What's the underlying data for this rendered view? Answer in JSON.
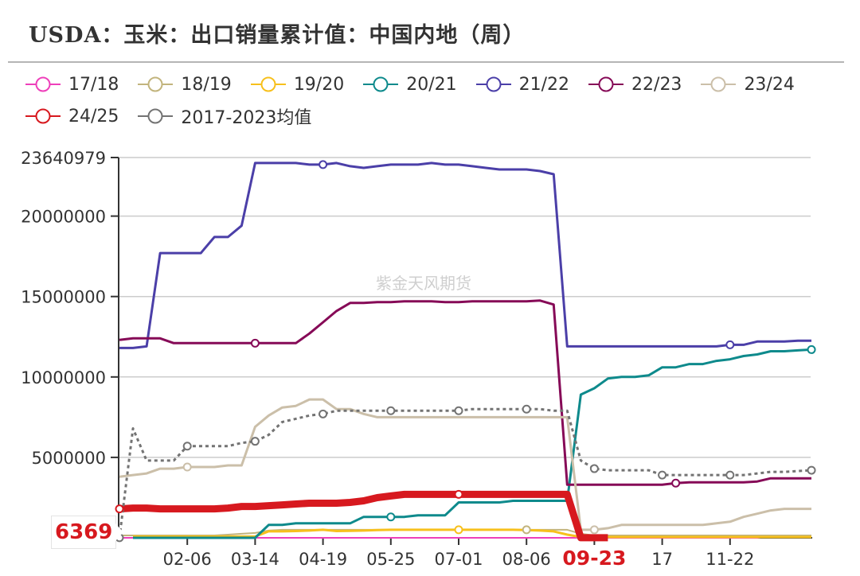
{
  "title": "USDA：玉米：出口销量累计值：中国内地（周）",
  "watermark": "紫金天风期货",
  "legend": [
    {
      "label": "17/18",
      "color": "#ee3fba"
    },
    {
      "label": "18/19",
      "color": "#c2b47d"
    },
    {
      "label": "19/20",
      "color": "#f7c01c"
    },
    {
      "label": "20/21",
      "color": "#0e8a8c"
    },
    {
      "label": "21/22",
      "color": "#4b3fa8"
    },
    {
      "label": "22/23",
      "color": "#860a57"
    },
    {
      "label": "23/24",
      "color": "#cbbfa9"
    },
    {
      "label": "24/25",
      "color": "#d7191f"
    },
    {
      "label": "2017-2023均值",
      "color": "#737373"
    }
  ],
  "callout": {
    "value": "6369",
    "color": "#d7191f"
  },
  "chart_data": {
    "type": "line",
    "title": "USDA：玉米：出口销量累计值：中国内地（周）",
    "xlabel": "",
    "ylabel": "",
    "ylim": [
      0,
      23640979
    ],
    "yticks": [
      0,
      5000000,
      10000000,
      15000000,
      20000000,
      23640979
    ],
    "ytick_labels": [
      "",
      "5000000",
      "10000000",
      "15000000",
      "20000000",
      "23640979"
    ],
    "xtick_labels": [
      "02-06",
      "03-14",
      "04-19",
      "05-25",
      "07-01",
      "08-06",
      "09-23",
      "17",
      "11-22"
    ],
    "xtick_week_index": [
      5,
      10,
      15,
      20,
      25,
      30,
      35,
      40,
      45
    ],
    "highlighted_xtick": "09-23",
    "grid": true,
    "legend_position": "top",
    "weeks": 52,
    "series": [
      {
        "name": "17/18",
        "color": "#ee3fba",
        "width": 2,
        "values": [
          0,
          0,
          0,
          0,
          0,
          0,
          0,
          0,
          0,
          0,
          0,
          0,
          0,
          0,
          0,
          0,
          0,
          0,
          0,
          0,
          0,
          0,
          0,
          0,
          0,
          0,
          0,
          0,
          0,
          0,
          0,
          0,
          0,
          0,
          0,
          0,
          0,
          0,
          0,
          0,
          0,
          0,
          0,
          0,
          0,
          0,
          0,
          0,
          100000,
          100000,
          100000,
          100000
        ]
      },
      {
        "name": "18/19",
        "color": "#c2b47d",
        "width": 2,
        "values": [
          150000,
          150000,
          150000,
          150000,
          150000,
          150000,
          150000,
          150000,
          200000,
          250000,
          300000,
          450000,
          500000,
          500000,
          500000,
          500000,
          500000,
          500000,
          500000,
          500000,
          500000,
          500000,
          500000,
          500000,
          500000,
          500000,
          500000,
          500000,
          500000,
          500000,
          500000,
          500000,
          500000,
          500000,
          250000,
          150000,
          150000,
          150000,
          150000,
          150000,
          150000,
          150000,
          150000,
          150000,
          150000,
          150000,
          150000,
          150000,
          150000,
          150000,
          150000,
          150000
        ]
      },
      {
        "name": "19/20",
        "color": "#f7c01c",
        "width": 3,
        "values": [
          null,
          80000,
          80000,
          80000,
          80000,
          80000,
          80000,
          80000,
          80000,
          80000,
          80000,
          400000,
          400000,
          420000,
          450000,
          500000,
          420000,
          430000,
          450000,
          480000,
          500000,
          500000,
          500000,
          500000,
          500000,
          500000,
          500000,
          500000,
          500000,
          500000,
          480000,
          450000,
          400000,
          200000,
          50000,
          50000,
          50000,
          50000,
          50000,
          50000,
          50000,
          50000,
          50000,
          50000,
          50000,
          50000,
          50000,
          50000,
          50000,
          50000,
          50000,
          50000
        ]
      },
      {
        "name": "20/21",
        "color": "#0e8a8c",
        "width": 3,
        "values": [
          null,
          0,
          0,
          0,
          0,
          0,
          0,
          0,
          0,
          0,
          0,
          800000,
          800000,
          900000,
          900000,
          900000,
          900000,
          900000,
          1300000,
          1300000,
          1300000,
          1300000,
          1400000,
          1400000,
          1400000,
          2200000,
          2200000,
          2200000,
          2200000,
          2300000,
          2300000,
          2300000,
          2300000,
          2300000,
          8900000,
          9300000,
          9900000,
          10000000,
          10000000,
          10100000,
          10600000,
          10600000,
          10800000,
          10800000,
          11000000,
          11100000,
          11300000,
          11400000,
          11600000,
          11600000,
          11650000,
          11700000
        ]
      },
      {
        "name": "21/22",
        "color": "#4b3fa8",
        "width": 3,
        "values": [
          11800000,
          11800000,
          11900000,
          17700000,
          17700000,
          17700000,
          17700000,
          18700000,
          18700000,
          19400000,
          23300000,
          23300000,
          23300000,
          23300000,
          23200000,
          23200000,
          23300000,
          23100000,
          23000000,
          23100000,
          23200000,
          23200000,
          23200000,
          23300000,
          23200000,
          23200000,
          23100000,
          23000000,
          22900000,
          22900000,
          22900000,
          22800000,
          22600000,
          11900000,
          11900000,
          11900000,
          11900000,
          11900000,
          11900000,
          11900000,
          11900000,
          11900000,
          11900000,
          11900000,
          11900000,
          12000000,
          12000000,
          12200000,
          12200000,
          12200000,
          12250000,
          12250000
        ]
      },
      {
        "name": "22/23",
        "color": "#860a57",
        "width": 3,
        "values": [
          12300000,
          12400000,
          12400000,
          12400000,
          12100000,
          12100000,
          12100000,
          12100000,
          12100000,
          12100000,
          12100000,
          12100000,
          12100000,
          12100000,
          12700000,
          13400000,
          14100000,
          14600000,
          14600000,
          14650000,
          14650000,
          14700000,
          14700000,
          14700000,
          14650000,
          14650000,
          14700000,
          14700000,
          14700000,
          14700000,
          14700000,
          14750000,
          14500000,
          3300000,
          3300000,
          3300000,
          3300000,
          3300000,
          3300000,
          3300000,
          3300000,
          3400000,
          3450000,
          3450000,
          3450000,
          3450000,
          3450000,
          3500000,
          3700000,
          3700000,
          3700000,
          3700000
        ]
      },
      {
        "name": "23/24",
        "color": "#cbbfa9",
        "width": 3,
        "values": [
          3800000,
          3900000,
          4000000,
          4300000,
          4300000,
          4400000,
          4400000,
          4400000,
          4500000,
          4500000,
          6900000,
          7600000,
          8100000,
          8200000,
          8600000,
          8600000,
          8000000,
          8000000,
          7700000,
          7500000,
          7500000,
          7500000,
          7500000,
          7500000,
          7500000,
          7500000,
          7500000,
          7500000,
          7500000,
          7500000,
          7500000,
          7500000,
          7500000,
          7500000,
          500000,
          500000,
          600000,
          800000,
          800000,
          800000,
          800000,
          800000,
          800000,
          800000,
          900000,
          1000000,
          1300000,
          1500000,
          1700000,
          1800000,
          1800000,
          1800000
        ]
      },
      {
        "name": "24/25",
        "color": "#d7191f",
        "width": 9,
        "values": [
          1800000,
          1850000,
          1850000,
          1800000,
          1800000,
          1800000,
          1800000,
          1800000,
          1850000,
          1950000,
          1950000,
          2000000,
          2050000,
          2100000,
          2150000,
          2150000,
          2150000,
          2200000,
          2300000,
          2500000,
          2600000,
          2700000,
          2700000,
          2700000,
          2700000,
          2700000,
          2700000,
          2700000,
          2700000,
          2700000,
          2700000,
          2700000,
          2700000,
          2700000,
          6369,
          6369,
          6369
        ]
      },
      {
        "name": "2017-2023均值",
        "color": "#737373",
        "width": 3,
        "dashed": true,
        "values": [
          6369,
          6800000,
          4800000,
          4800000,
          4800000,
          5700000,
          5700000,
          5700000,
          5700000,
          5900000,
          6000000,
          6400000,
          7200000,
          7400000,
          7600000,
          7700000,
          7900000,
          7900000,
          7900000,
          7900000,
          7900000,
          7900000,
          7900000,
          7900000,
          7900000,
          7900000,
          8000000,
          8000000,
          8000000,
          8000000,
          8000000,
          8000000,
          7900000,
          7900000,
          4800000,
          4300000,
          4200000,
          4200000,
          4200000,
          4200000,
          3900000,
          3900000,
          3900000,
          3900000,
          3900000,
          3900000,
          3900000,
          4000000,
          4100000,
          4100000,
          4150000,
          4200000
        ]
      }
    ],
    "markers": [
      {
        "series": "21/22",
        "index": 15
      },
      {
        "series": "21/22",
        "index": 45
      },
      {
        "series": "22/23",
        "index": 10
      },
      {
        "series": "22/23",
        "index": 41
      },
      {
        "series": "23/24",
        "index": 5
      },
      {
        "series": "23/24",
        "index": 35
      },
      {
        "series": "20/21",
        "index": 20
      },
      {
        "series": "20/21",
        "index": 51
      },
      {
        "series": "19/20",
        "index": 25
      },
      {
        "series": "18/19",
        "index": 30
      },
      {
        "series": "24/25",
        "index": 0
      },
      {
        "series": "24/25",
        "index": 25
      },
      {
        "series": "2017-2023均值",
        "index": 0
      },
      {
        "series": "2017-2023均值",
        "index": 5
      },
      {
        "series": "2017-2023均值",
        "index": 10
      },
      {
        "series": "2017-2023均值",
        "index": 15
      },
      {
        "series": "2017-2023均值",
        "index": 20
      },
      {
        "series": "2017-2023均值",
        "index": 25
      },
      {
        "series": "2017-2023均值",
        "index": 30
      },
      {
        "series": "2017-2023均值",
        "index": 35
      },
      {
        "series": "2017-2023均值",
        "index": 40
      },
      {
        "series": "2017-2023均值",
        "index": 45
      },
      {
        "series": "2017-2023均值",
        "index": 51
      }
    ]
  }
}
